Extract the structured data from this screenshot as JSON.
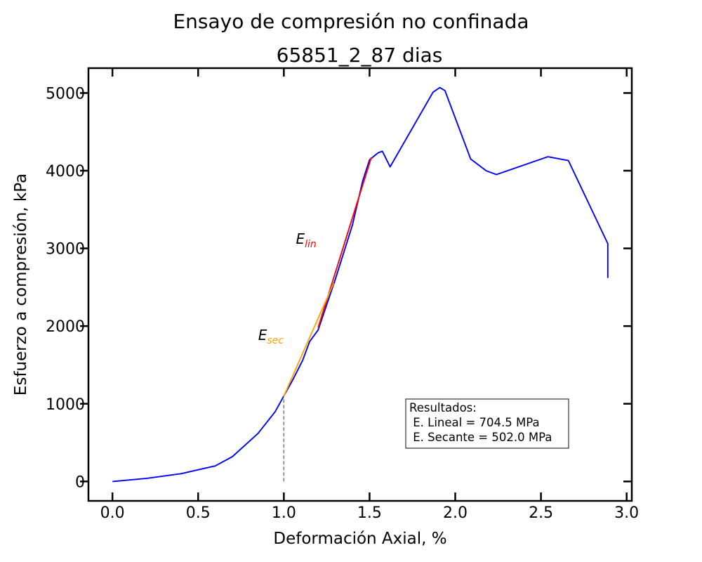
{
  "chart_data": {
    "type": "line",
    "title": "Ensayo de compresión no confinada",
    "subtitle": "65851_2_87 dias",
    "xlabel": "Deformación Axial, %",
    "ylabel": "Esfuerzo a compresión, kPa",
    "xlim": [
      -0.14,
      3.03
    ],
    "ylim": [
      -250,
      5320
    ],
    "xticks": [
      0.0,
      0.5,
      1.0,
      1.5,
      2.0,
      2.5,
      3.0
    ],
    "xtick_labels": [
      "0.0",
      "0.5",
      "1.0",
      "1.5",
      "2.0",
      "2.5",
      "3.0"
    ],
    "yticks": [
      0,
      1000,
      2000,
      3000,
      4000,
      5000
    ],
    "ytick_labels": [
      "0",
      "1000",
      "2000",
      "3000",
      "4000",
      "5000"
    ],
    "grid": false,
    "series": [
      {
        "color": "#0000ff",
        "x": [
          0.0,
          0.2,
          0.4,
          0.6,
          0.7,
          0.85,
          0.95,
          1.0,
          1.05,
          1.11,
          1.15,
          1.2,
          1.3,
          1.4,
          1.46,
          1.5,
          1.55,
          1.575,
          1.62,
          1.87,
          1.91,
          1.94,
          2.09,
          2.18,
          2.24,
          2.54,
          2.66,
          2.89,
          2.89
        ],
        "y": [
          0,
          40,
          100,
          200,
          320,
          620,
          900,
          1100,
          1300,
          1560,
          1800,
          1950,
          2600,
          3300,
          3870,
          4140,
          4230,
          4250,
          4050,
          5010,
          5070,
          5030,
          4150,
          4000,
          3950,
          4180,
          4130,
          3060,
          2620
        ]
      },
      {
        "name": "E_lin",
        "color": "#ff0000",
        "x": [
          1.2,
          1.51
        ],
        "y": [
          1980,
          4170
        ]
      },
      {
        "name": "E_sec",
        "color": "#ffa500",
        "x": [
          1.0,
          1.29
        ],
        "y": [
          1100,
          2550
        ]
      },
      {
        "color": "#808080",
        "dashed": true,
        "x": [
          1.0,
          1.0
        ],
        "y": [
          0,
          1100
        ]
      }
    ],
    "annotations": [
      {
        "label": "E",
        "sub": "lin",
        "x": 1.07,
        "y": 3060,
        "color": "#ff0000"
      },
      {
        "label": "E",
        "sub": "sec",
        "x": 0.85,
        "y": 1820,
        "color": "#ffa500"
      }
    ],
    "results_box": {
      "lines": [
        "Resultados:",
        " E. Lineal = 704.5 MPa",
        " E. Secante = 502.0 MPa"
      ],
      "position": "lower-right"
    }
  }
}
